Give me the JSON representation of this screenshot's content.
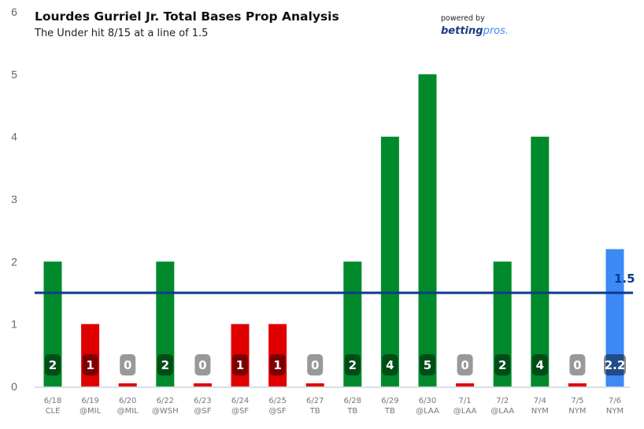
{
  "header": {
    "title": "Lourdes Gurriel Jr. Total Bases Prop Analysis",
    "subtitle": "The Under hit 8/15 at a line of 1.5",
    "powered_by": "powered by",
    "brand_bold": "betting",
    "brand_light": "pros."
  },
  "colors": {
    "over": "#008a2b",
    "under": "#e00000",
    "projection": "#3d8af7",
    "line": "#0a3a8c"
  },
  "chart_data": {
    "type": "bar",
    "title": "Lourdes Gurriel Jr. Total Bases Prop Analysis",
    "subtitle": "The Under hit 8/15 at a line of 1.5",
    "categories": [
      "6/18",
      "6/19",
      "6/20",
      "6/22",
      "6/23",
      "6/24",
      "6/25",
      "6/27",
      "6/28",
      "6/29",
      "6/30",
      "7/1",
      "7/2",
      "7/4",
      "7/5",
      "7/6"
    ],
    "opponents": [
      "CLE",
      "@MIL",
      "@MIL",
      "@WSH",
      "@SF",
      "@SF",
      "@SF",
      "TB",
      "TB",
      "TB",
      "@LAA",
      "@LAA",
      "@LAA",
      "NYM",
      "NYM",
      "NYM"
    ],
    "values": [
      2,
      1,
      0,
      2,
      0,
      1,
      1,
      0,
      2,
      4,
      5,
      0,
      2,
      4,
      0,
      2.2
    ],
    "value_labels": [
      "2",
      "1",
      "0",
      "2",
      "0",
      "1",
      "1",
      "0",
      "2",
      "4",
      "5",
      "0",
      "2",
      "4",
      "0",
      "2.2"
    ],
    "status": [
      "over",
      "under",
      "under",
      "over",
      "under",
      "under",
      "under",
      "under",
      "over",
      "over",
      "over",
      "under",
      "over",
      "over",
      "under",
      "projection"
    ],
    "line": 1.5,
    "line_label": "1.5",
    "ylim": [
      0,
      6
    ],
    "yticks": [
      "0",
      "1",
      "2",
      "3",
      "4",
      "5",
      "6"
    ],
    "xlabel": "",
    "ylabel": ""
  }
}
